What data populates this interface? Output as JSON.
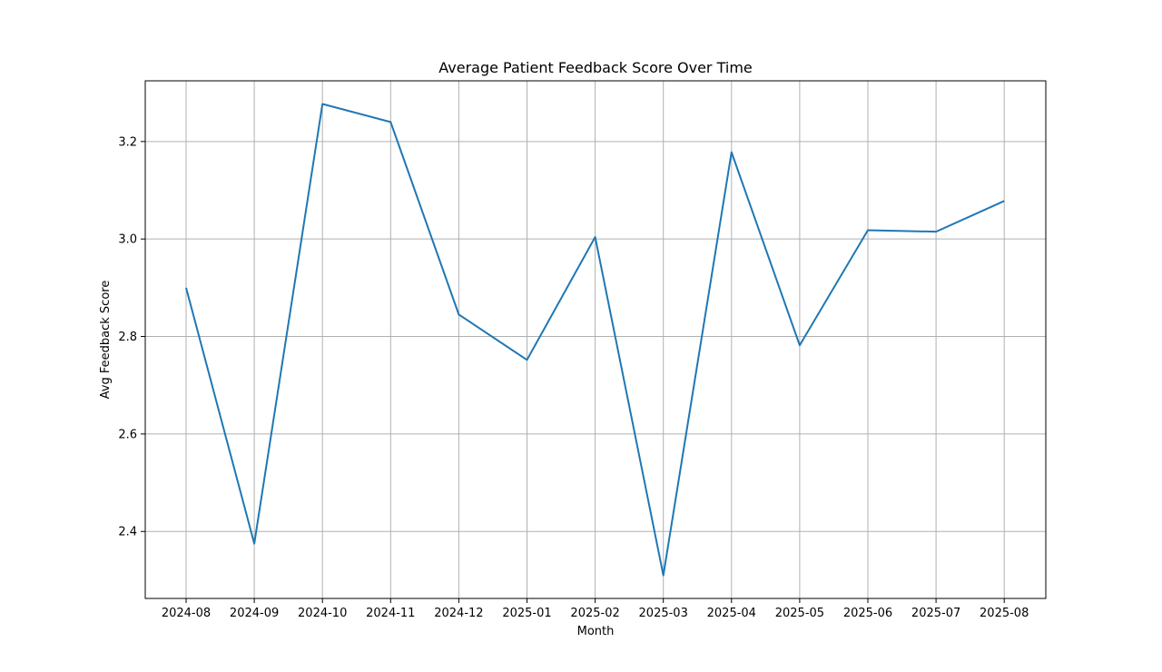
{
  "chart_data": {
    "type": "line",
    "title": "Average Patient Feedback Score Over Time",
    "xlabel": "Month",
    "ylabel": "Avg Feedback Score",
    "categories": [
      "2024-08",
      "2024-09",
      "2024-10",
      "2024-11",
      "2024-12",
      "2025-01",
      "2025-02",
      "2025-03",
      "2025-04",
      "2025-05",
      "2025-06",
      "2025-07",
      "2025-08"
    ],
    "series": [
      {
        "values": [
          2.9,
          2.375,
          3.277,
          3.24,
          2.845,
          2.752,
          3.004,
          2.31,
          3.178,
          2.782,
          3.018,
          3.015,
          3.078
        ]
      }
    ],
    "ylim": [
      2.2626,
      3.3245
    ],
    "yticks": [
      2.4,
      2.6,
      2.8,
      3.0,
      3.2
    ],
    "ytick_labels": [
      "2.4",
      "2.6",
      "2.8",
      "3.0",
      "3.2"
    ],
    "grid": true,
    "legend": "none",
    "colors": {
      "series": "#1f77b4",
      "grid": "#b0b0b0",
      "axis": "#000000"
    }
  }
}
